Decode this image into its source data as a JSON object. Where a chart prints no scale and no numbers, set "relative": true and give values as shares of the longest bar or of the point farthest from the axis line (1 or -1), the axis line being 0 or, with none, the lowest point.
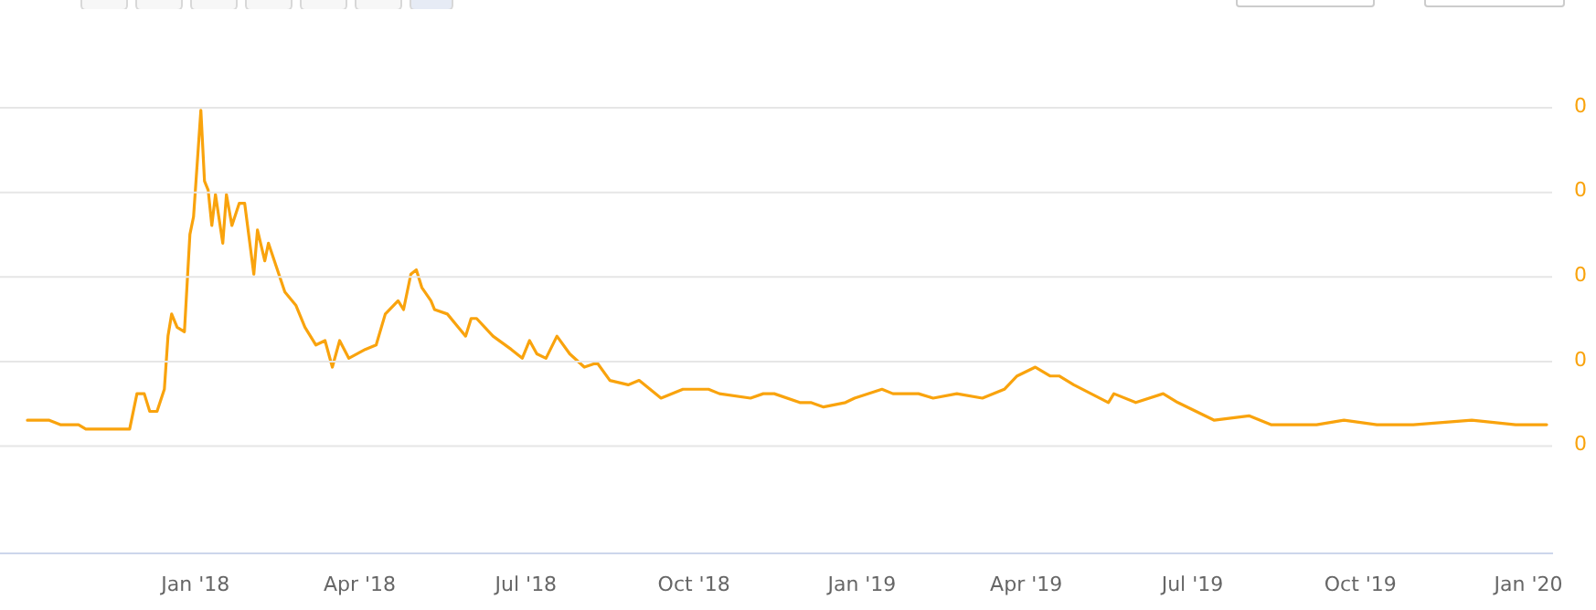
{
  "chart_data": {
    "type": "line",
    "relative": true,
    "x": [
      "2017-10-01",
      "2017-10-13",
      "2017-10-19",
      "2017-10-29",
      "2017-11-02",
      "2017-11-07",
      "2017-11-22",
      "2017-11-26",
      "2017-11-30",
      "2017-12-04",
      "2017-12-07",
      "2017-12-11",
      "2017-12-15",
      "2017-12-17",
      "2017-12-19",
      "2017-12-22",
      "2017-12-26",
      "2017-12-29",
      "2017-12-31",
      "2018-01-04",
      "2018-01-06",
      "2018-01-08",
      "2018-01-10",
      "2018-01-12",
      "2018-01-16",
      "2018-01-18",
      "2018-01-21",
      "2018-01-25",
      "2018-01-28",
      "2018-02-02",
      "2018-02-04",
      "2018-02-08",
      "2018-02-10",
      "2018-02-19",
      "2018-02-25",
      "2018-03-02",
      "2018-03-08",
      "2018-03-13",
      "2018-03-17",
      "2018-03-21",
      "2018-03-26",
      "2018-04-04",
      "2018-04-10",
      "2018-04-15",
      "2018-04-22",
      "2018-04-25",
      "2018-04-29",
      "2018-05-02",
      "2018-05-05",
      "2018-05-10",
      "2018-05-12",
      "2018-05-19",
      "2018-05-25",
      "2018-05-29",
      "2018-06-01",
      "2018-06-04",
      "2018-06-13",
      "2018-06-23",
      "2018-06-29",
      "2018-07-03",
      "2018-07-07",
      "2018-07-12",
      "2018-07-18",
      "2018-07-25",
      "2018-08-02",
      "2018-08-09",
      "2018-08-16",
      "2018-08-26",
      "2018-09-01",
      "2018-09-13",
      "2018-09-25",
      "2018-10-09",
      "2018-10-15",
      "2018-11-01",
      "2018-11-08",
      "2018-11-14",
      "2018-11-28",
      "2018-12-04",
      "2018-12-11",
      "2018-12-23",
      "2018-12-28",
      "2019-01-12",
      "2019-01-18",
      "2019-02-01",
      "2019-02-09",
      "2019-02-22",
      "2019-03-08",
      "2019-03-20",
      "2019-03-27",
      "2019-04-06",
      "2019-04-14",
      "2019-04-19",
      "2019-04-27",
      "2019-05-16",
      "2019-05-19",
      "2019-05-31",
      "2019-06-15",
      "2019-06-23",
      "2019-07-03",
      "2019-07-13",
      "2019-08-01",
      "2019-08-13",
      "2019-09-07",
      "2019-09-22",
      "2019-10-10",
      "2019-10-30",
      "2019-12-01",
      "2019-12-25",
      "2020-01-11"
    ],
    "series": [
      {
        "color": "#f9a30d",
        "values": [
          0.3,
          0.3,
          0.29,
          0.29,
          0.28,
          0.28,
          0.28,
          0.28,
          0.36,
          0.36,
          0.32,
          0.32,
          0.37,
          0.49,
          0.54,
          0.51,
          0.5,
          0.72,
          0.76,
          1.0,
          0.84,
          0.82,
          0.74,
          0.81,
          0.7,
          0.81,
          0.74,
          0.79,
          0.79,
          0.63,
          0.73,
          0.66,
          0.7,
          0.59,
          0.56,
          0.51,
          0.47,
          0.48,
          0.42,
          0.48,
          0.44,
          0.46,
          0.47,
          0.54,
          0.57,
          0.55,
          0.63,
          0.64,
          0.6,
          0.57,
          0.55,
          0.54,
          0.51,
          0.49,
          0.53,
          0.53,
          0.49,
          0.46,
          0.44,
          0.48,
          0.45,
          0.44,
          0.49,
          0.45,
          0.42,
          0.43,
          0.39,
          0.38,
          0.39,
          0.35,
          0.37,
          0.37,
          0.36,
          0.35,
          0.36,
          0.36,
          0.34,
          0.34,
          0.33,
          0.34,
          0.35,
          0.37,
          0.36,
          0.36,
          0.35,
          0.36,
          0.35,
          0.37,
          0.4,
          0.42,
          0.4,
          0.4,
          0.38,
          0.34,
          0.36,
          0.34,
          0.36,
          0.34,
          0.32,
          0.3,
          0.31,
          0.29,
          0.29,
          0.3,
          0.29,
          0.29,
          0.3,
          0.29,
          0.29
        ]
      }
    ],
    "xlim": [
      "2017-09-16",
      "2020-01-14"
    ],
    "xticks": [
      {
        "value": "2018-01-01",
        "label": "Jan '18"
      },
      {
        "value": "2018-04-01",
        "label": "Apr '18"
      },
      {
        "value": "2018-07-01",
        "label": "Jul '18"
      },
      {
        "value": "2018-10-01",
        "label": "Oct '18"
      },
      {
        "value": "2019-01-01",
        "label": "Jan '19"
      },
      {
        "value": "2019-04-01",
        "label": "Apr '19"
      },
      {
        "value": "2019-07-01",
        "label": "Jul '19"
      },
      {
        "value": "2019-10-01",
        "label": "Oct '19"
      },
      {
        "value": "2020-01-01",
        "label": "Jan '20"
      }
    ],
    "annotations": [
      "0",
      "0",
      "0",
      "0",
      "0"
    ],
    "grid": "y",
    "legend": false,
    "marker": "none",
    "line_style": "solid"
  }
}
